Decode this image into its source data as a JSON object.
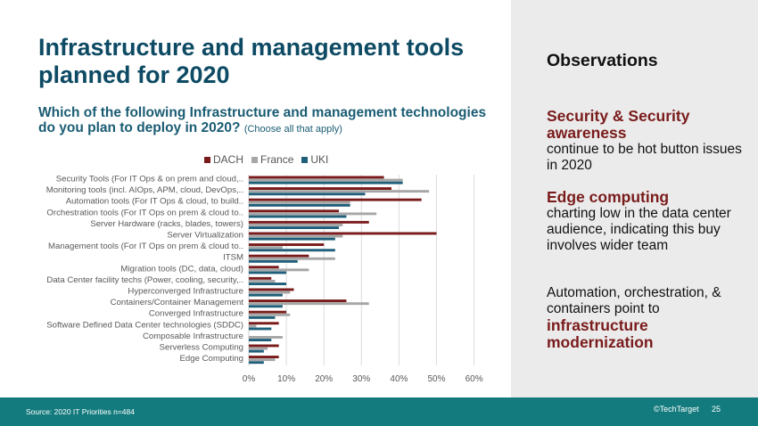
{
  "slide": {
    "title": "Infrastructure and management tools planned for 2020",
    "subtitle": "Which of the following Infrastructure and management technologies do you plan to deploy in 2020?",
    "subtitle_note": "(Choose all that apply)"
  },
  "observations": {
    "heading": "Observations",
    "items": [
      {
        "highlight": "Security & Security awareness",
        "text": "continue to be hot button issues in 2020"
      },
      {
        "highlight": "Edge computing",
        "text": "charting low in the data center audience, indicating this buy involves wider team"
      },
      {
        "text": "Automation, orchestration, & containers point to",
        "highlight": "infrastructure modernization"
      }
    ]
  },
  "footer": {
    "source": "Source:  2020 IT Priorities n=484",
    "copyright": "©TechTarget",
    "page_number": "25"
  },
  "colors": {
    "title": "#0d4a63",
    "dach": "#7a1b1b",
    "france": "#a6a6a6",
    "uki": "#1f5f7a",
    "footer": "#137b7e",
    "panel": "#ebebeb"
  },
  "chart_data": {
    "type": "bar",
    "orientation": "horizontal",
    "title": "",
    "xlabel": "",
    "ylabel": "",
    "xlim": [
      0,
      60
    ],
    "x_ticks": [
      "0%",
      "10%",
      "20%",
      "30%",
      "40%",
      "50%",
      "60%"
    ],
    "grid": true,
    "legend_position": "top",
    "categories": [
      "Security Tools (For IT Ops & on prem and cloud,..",
      "Monitoring tools (incl. AIOps, APM, cloud, DevOps,..",
      "Automation tools (For IT Ops & cloud, to build..",
      "Orchestration tools (For IT Ops on prem & cloud to..",
      "Server  Hardware (racks, blades, towers)",
      "Server Virtualization",
      "Management tools (For IT Ops on prem & cloud to..",
      "ITSM",
      "Migration tools (DC, data, cloud)",
      "Data Center facility techs (Power, cooling, security,..",
      "Hyperconverged Infrastructure",
      "Containers/Container Management",
      "Converged Infrastructure",
      "Software Defined Data Center technologies (SDDC)",
      "Composable Infrastructure",
      "Serverless Computing",
      "Edge Computing"
    ],
    "series": [
      {
        "name": "DACH",
        "color": "#7a1b1b",
        "values": [
          36,
          38,
          46,
          24,
          32,
          50,
          20,
          16,
          8,
          6,
          12,
          26,
          10,
          8,
          0,
          8,
          8
        ]
      },
      {
        "name": "France",
        "color": "#a6a6a6",
        "values": [
          41,
          48,
          27,
          34,
          25,
          25,
          9,
          23,
          16,
          7,
          11,
          32,
          11,
          2,
          9,
          5,
          7
        ]
      },
      {
        "name": "UKI",
        "color": "#1f5f7a",
        "values": [
          41,
          31,
          27,
          26,
          24,
          23,
          23,
          13,
          10,
          10,
          9,
          9,
          7,
          6,
          6,
          4,
          4
        ]
      }
    ]
  }
}
